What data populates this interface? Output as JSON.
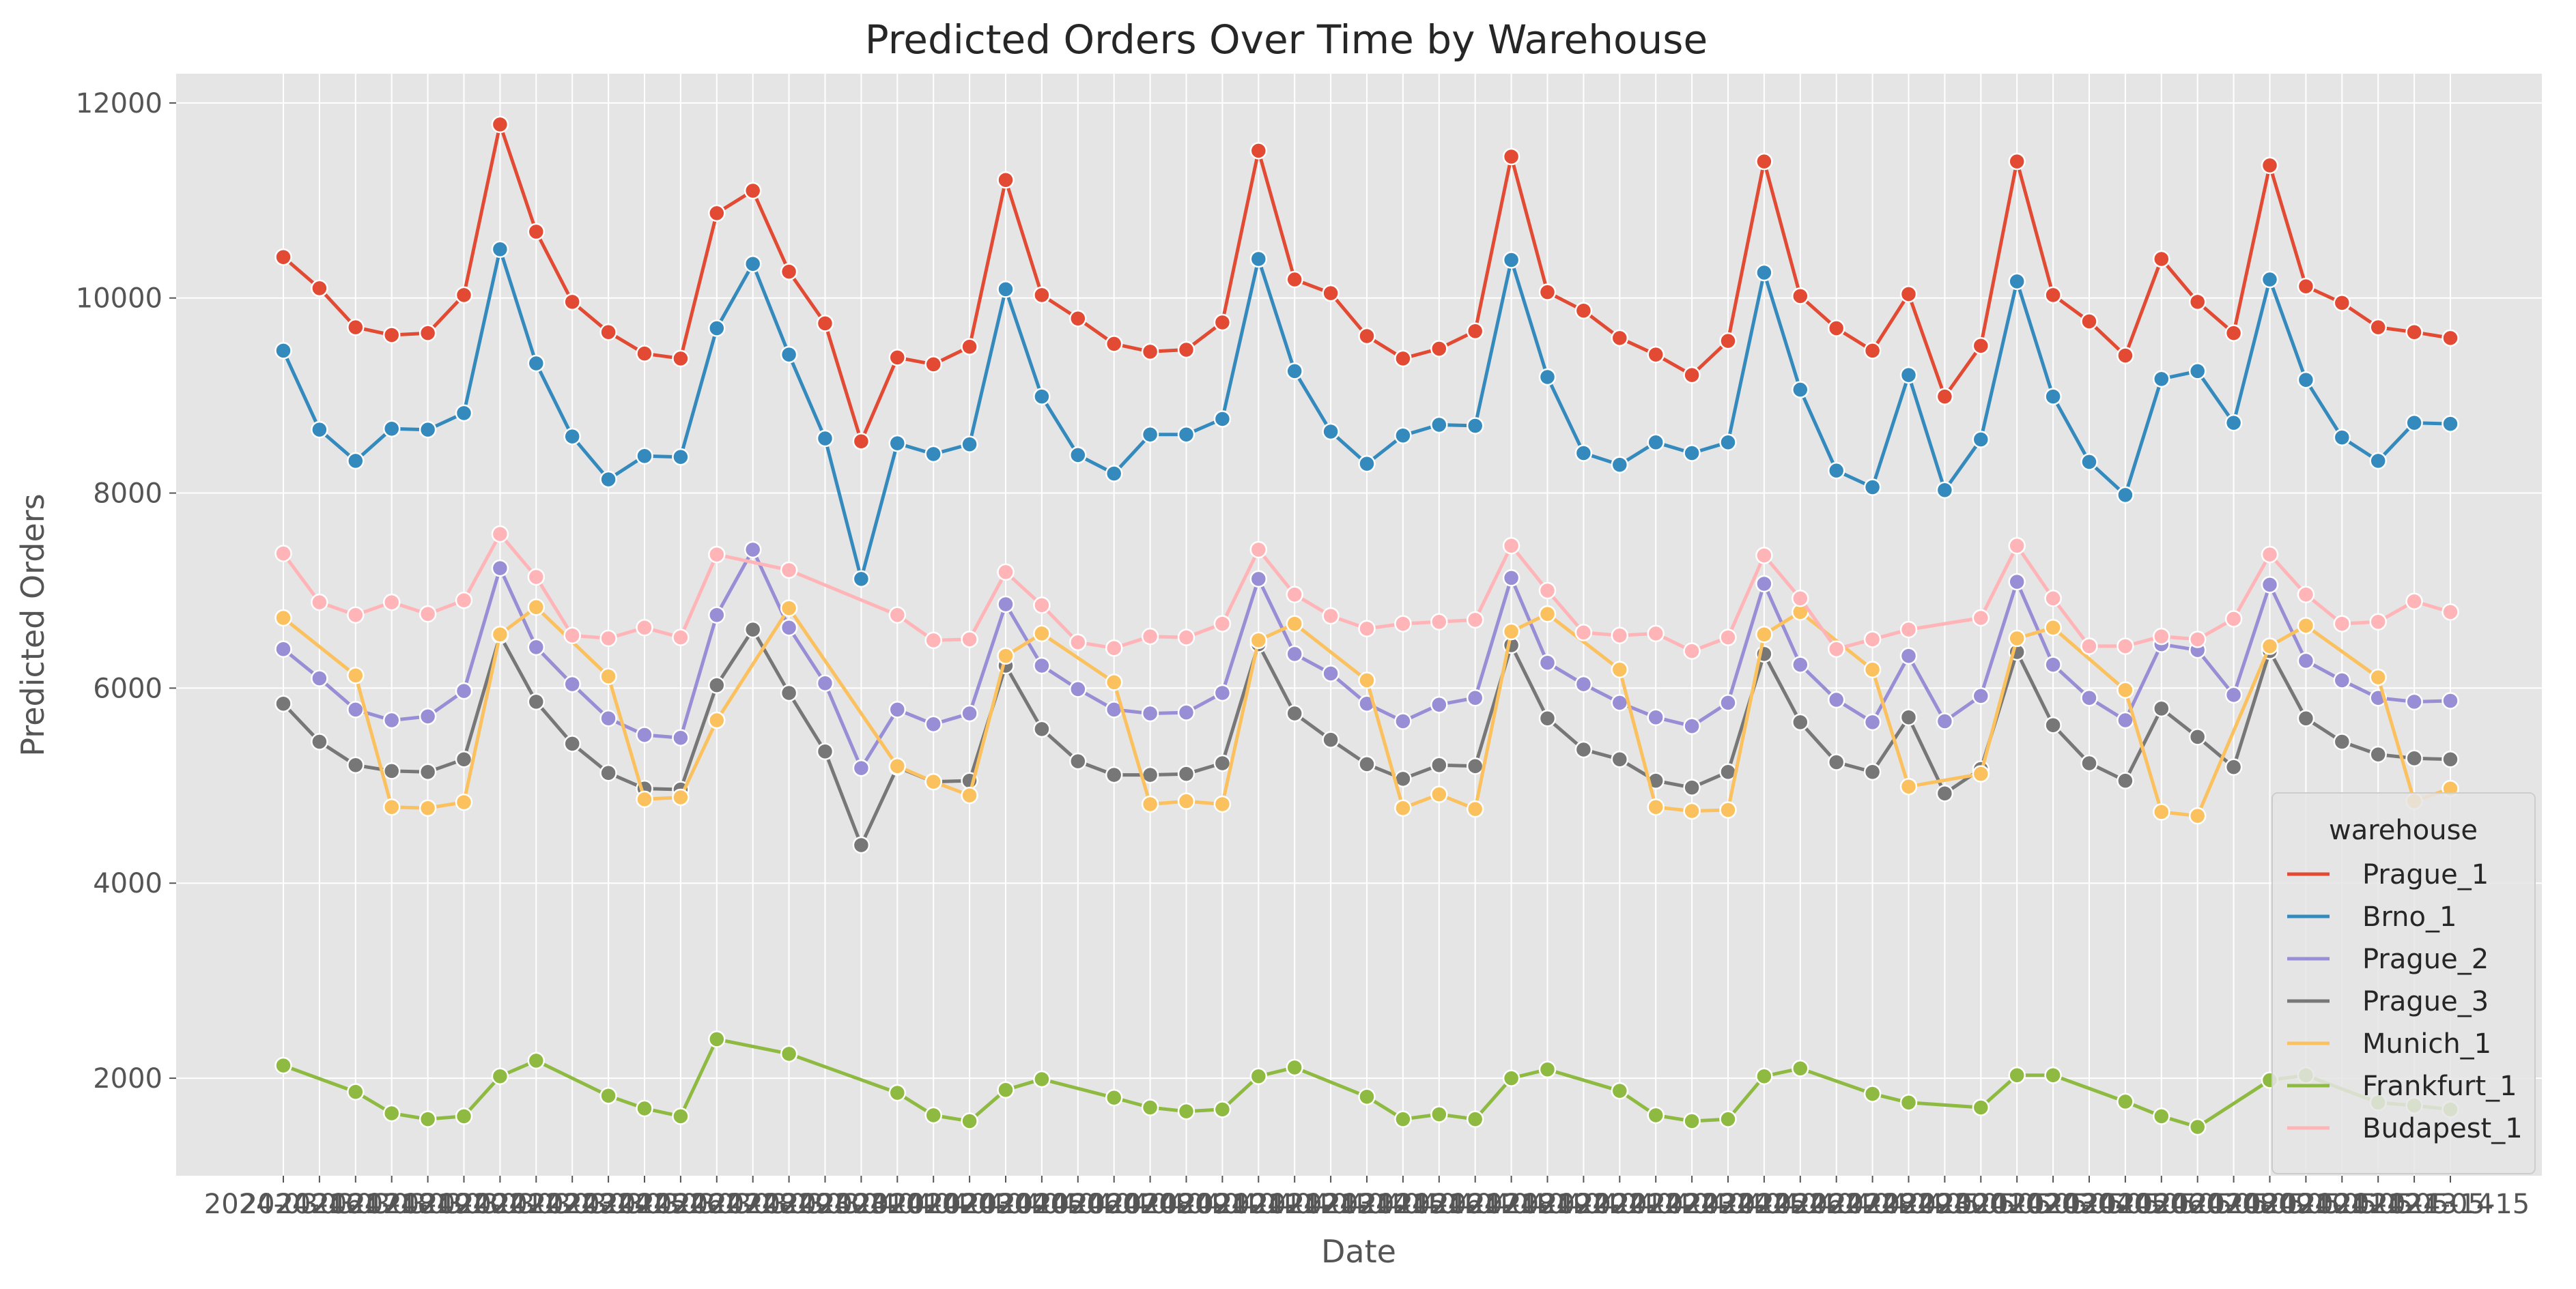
{
  "chart_data": {
    "type": "line",
    "title": "Predicted Orders Over Time by Warehouse",
    "xlabel": "Date",
    "ylabel": "Predicted Orders",
    "ylim": [
      1000,
      12300
    ],
    "yticks": [
      2000,
      4000,
      6000,
      8000,
      10000,
      12000
    ],
    "xtick_labels": [
      "2024-03-16",
      "2024-03-17",
      "2024-03-18",
      "2024-03-19",
      "2024-03-20",
      "2024-03-21",
      "2024-03-22",
      "2024-03-23",
      "2024-03-24",
      "2024-03-25",
      "2024-03-26",
      "2024-03-27",
      "2024-03-28",
      "2024-03-29",
      "2024-03-30",
      "2024-03-31",
      "2024-04-01",
      "2024-04-02",
      "2024-04-03",
      "2024-04-04",
      "2024-04-05",
      "2024-04-06",
      "2024-04-07",
      "2024-04-08",
      "2024-04-09",
      "2024-04-10",
      "2024-04-11",
      "2024-04-12",
      "2024-04-13",
      "2024-04-14",
      "2024-04-15",
      "2024-04-16",
      "2024-04-17",
      "2024-04-18",
      "2024-04-19",
      "2024-04-20",
      "2024-04-21",
      "2024-04-22",
      "2024-04-23",
      "2024-04-24",
      "2024-04-25",
      "2024-04-26",
      "2024-04-27",
      "2024-04-28",
      "2024-04-29",
      "2024-04-30",
      "2024-05-01",
      "2024-05-02",
      "2024-05-03",
      "2024-05-04",
      "2024-05-05",
      "2024-05-06",
      "2024-05-07",
      "2024-05-08",
      "2024-05-09",
      "2024-05-10",
      "2024-05-11",
      "2024-05-12",
      "2024-05-13",
      "2024-05-14",
      "2024-05-15"
    ],
    "grid": true,
    "legend": {
      "title": "warehouse",
      "placement": "lower-right"
    },
    "series": [
      {
        "name": "Prague_1",
        "color": "#E24A33",
        "x": [
          0,
          1,
          2,
          3,
          4,
          5,
          6,
          7,
          8,
          9,
          10,
          11,
          12,
          13,
          14,
          15,
          16,
          17,
          18,
          19,
          20,
          21,
          22,
          23,
          24,
          25,
          26,
          27,
          28,
          29,
          30,
          31,
          32,
          33,
          34,
          35,
          36,
          37,
          38,
          39,
          40,
          41,
          42,
          43,
          44,
          45,
          46,
          47,
          48,
          49,
          50,
          51,
          52,
          53,
          54,
          55,
          56,
          57,
          58,
          59,
          60
        ],
        "values": [
          10420,
          10100,
          9700,
          9620,
          9640,
          10030,
          11780,
          10680,
          9960,
          9650,
          9430,
          9380,
          10870,
          11100,
          10270,
          9740,
          8530,
          9390,
          9320,
          9500,
          11210,
          10030,
          9790,
          9530,
          9450,
          9470,
          9750,
          11510,
          10190,
          10050,
          9610,
          9380,
          9480,
          9660,
          11450,
          10060,
          9870,
          9590,
          9420,
          9210,
          9560,
          11400,
          10020,
          9690,
          9460,
          10040,
          8990,
          9510,
          11400,
          10030,
          9760,
          9410,
          10400,
          9960,
          9640,
          11360,
          10120,
          9950,
          9700,
          9650,
          9590
        ]
      },
      {
        "name": "Brno_1",
        "color": "#348ABD",
        "x": [
          0,
          1,
          2,
          3,
          4,
          5,
          6,
          7,
          8,
          9,
          10,
          11,
          12,
          13,
          14,
          15,
          16,
          17,
          18,
          19,
          20,
          21,
          22,
          23,
          24,
          25,
          26,
          27,
          28,
          29,
          30,
          31,
          32,
          33,
          34,
          35,
          36,
          37,
          38,
          39,
          40,
          41,
          42,
          43,
          44,
          45,
          46,
          47,
          48,
          49,
          50,
          51,
          52,
          53,
          54,
          55,
          56,
          57,
          58,
          59,
          60
        ],
        "values": [
          9460,
          8650,
          8330,
          8660,
          8650,
          8820,
          10500,
          9330,
          8580,
          8140,
          8380,
          8370,
          9690,
          10350,
          9420,
          8560,
          7120,
          8510,
          8400,
          8500,
          10090,
          8990,
          8390,
          8200,
          8600,
          8600,
          8760,
          10400,
          9250,
          8630,
          8300,
          8590,
          8700,
          8690,
          10390,
          9190,
          8410,
          8290,
          8520,
          8410,
          8520,
          10260,
          9060,
          8230,
          8060,
          9210,
          8030,
          8550,
          10170,
          8990,
          8320,
          7980,
          9170,
          9250,
          8720,
          10190,
          9160,
          8570,
          8330,
          8720,
          8710
        ]
      },
      {
        "name": "Prague_2",
        "color": "#988ED5",
        "x": [
          0,
          1,
          2,
          3,
          4,
          5,
          6,
          7,
          8,
          9,
          10,
          11,
          12,
          13,
          14,
          15,
          16,
          17,
          18,
          19,
          20,
          21,
          22,
          23,
          24,
          25,
          26,
          27,
          28,
          29,
          30,
          31,
          32,
          33,
          34,
          35,
          36,
          37,
          38,
          39,
          40,
          41,
          42,
          43,
          44,
          45,
          46,
          47,
          48,
          49,
          50,
          51,
          52,
          53,
          54,
          55,
          56,
          57,
          58,
          59,
          60
        ],
        "values": [
          6400,
          6100,
          5780,
          5670,
          5710,
          5970,
          7230,
          6420,
          6040,
          5690,
          5520,
          5490,
          6750,
          7420,
          6620,
          6050,
          5180,
          5780,
          5630,
          5740,
          6860,
          6230,
          5990,
          5780,
          5740,
          5750,
          5950,
          7120,
          6350,
          6150,
          5840,
          5660,
          5830,
          5900,
          7130,
          6260,
          6040,
          5850,
          5700,
          5610,
          5850,
          7070,
          6240,
          5880,
          5650,
          6330,
          5660,
          5920,
          7090,
          6240,
          5900,
          5670,
          6450,
          6390,
          5930,
          7060,
          6280,
          6080,
          5900,
          5860,
          5870
        ]
      },
      {
        "name": "Prague_3",
        "color": "#777777",
        "x": [
          0,
          1,
          2,
          3,
          4,
          5,
          6,
          7,
          8,
          9,
          10,
          11,
          12,
          13,
          14,
          15,
          16,
          17,
          18,
          19,
          20,
          21,
          22,
          23,
          24,
          25,
          26,
          27,
          28,
          29,
          30,
          31,
          32,
          33,
          34,
          35,
          36,
          37,
          38,
          39,
          40,
          41,
          42,
          43,
          44,
          45,
          46,
          47,
          48,
          49,
          50,
          51,
          52,
          53,
          54,
          55,
          56,
          57,
          58,
          59,
          60
        ],
        "values": [
          5840,
          5450,
          5210,
          5150,
          5140,
          5270,
          6540,
          5860,
          5430,
          5130,
          4970,
          4960,
          6030,
          6600,
          5950,
          5350,
          4390,
          5190,
          5040,
          5050,
          6230,
          5580,
          5250,
          5110,
          5110,
          5120,
          5230,
          6450,
          5740,
          5470,
          5220,
          5070,
          5210,
          5200,
          6440,
          5690,
          5370,
          5270,
          5050,
          4980,
          5140,
          6350,
          5650,
          5240,
          5140,
          5700,
          4920,
          5170,
          6370,
          5620,
          5230,
          5050,
          5790,
          5500,
          5190,
          6380,
          5690,
          5450,
          5320,
          5280,
          5270
        ]
      },
      {
        "name": "Munich_1",
        "color": "#FBC15E",
        "x": [
          0,
          2,
          3,
          4,
          5,
          6,
          7,
          9,
          10,
          11,
          12,
          14,
          17,
          18,
          19,
          20,
          21,
          23,
          24,
          25,
          26,
          27,
          28,
          30,
          31,
          32,
          33,
          34,
          35,
          37,
          38,
          39,
          40,
          41,
          42,
          44,
          45,
          47,
          48,
          49,
          51,
          52,
          53,
          55,
          56,
          58,
          59,
          60
        ],
        "values": [
          6720,
          6130,
          4780,
          4770,
          4830,
          6550,
          6830,
          6120,
          4860,
          4880,
          5670,
          6820,
          5200,
          5040,
          4900,
          6330,
          6560,
          6060,
          4810,
          4840,
          4810,
          6490,
          6660,
          6080,
          4770,
          4910,
          4760,
          6580,
          6760,
          6190,
          4780,
          4740,
          4750,
          6550,
          6780,
          6190,
          4990,
          5120,
          6510,
          6620,
          5980,
          4730,
          4690,
          6430,
          6640,
          6110,
          4840,
          4970
        ]
      },
      {
        "name": "Frankfurt_1",
        "color": "#8EBA42",
        "x": [
          0,
          2,
          3,
          4,
          5,
          6,
          7,
          9,
          10,
          11,
          12,
          14,
          17,
          18,
          19,
          20,
          21,
          23,
          24,
          25,
          26,
          27,
          28,
          30,
          31,
          32,
          33,
          34,
          35,
          37,
          38,
          39,
          40,
          41,
          42,
          44,
          45,
          47,
          48,
          49,
          51,
          52,
          53,
          55,
          56,
          58,
          59,
          60
        ],
        "values": [
          2130,
          1860,
          1640,
          1580,
          1610,
          2020,
          2180,
          1820,
          1690,
          1610,
          2400,
          2250,
          1850,
          1620,
          1560,
          1880,
          1990,
          1800,
          1700,
          1660,
          1680,
          2020,
          2110,
          1810,
          1580,
          1630,
          1580,
          2000,
          2090,
          1870,
          1620,
          1560,
          1580,
          2020,
          2100,
          1840,
          1750,
          1700,
          2030,
          2030,
          1760,
          1610,
          1500,
          1980,
          2030,
          1750,
          1720,
          1680
        ]
      },
      {
        "name": "Budapest_1",
        "color": "#FFB5B8",
        "x": [
          0,
          1,
          2,
          3,
          4,
          5,
          6,
          7,
          8,
          9,
          10,
          11,
          12,
          14,
          17,
          18,
          19,
          20,
          21,
          22,
          23,
          24,
          25,
          26,
          27,
          28,
          29,
          30,
          31,
          32,
          33,
          34,
          35,
          36,
          37,
          38,
          39,
          40,
          41,
          42,
          43,
          44,
          45,
          47,
          48,
          49,
          50,
          51,
          52,
          53,
          54,
          55,
          56,
          57,
          58,
          59,
          60
        ],
        "values": [
          7380,
          6880,
          6750,
          6880,
          6760,
          6900,
          7580,
          7140,
          6540,
          6510,
          6620,
          6520,
          7370,
          7210,
          6750,
          6490,
          6500,
          7190,
          6850,
          6470,
          6410,
          6530,
          6520,
          6660,
          7420,
          6960,
          6740,
          6610,
          6660,
          6680,
          6700,
          7460,
          7000,
          6570,
          6540,
          6560,
          6380,
          6520,
          7360,
          6920,
          6400,
          6500,
          6600,
          6720,
          7460,
          6920,
          6430,
          6430,
          6530,
          6500,
          6710,
          7370,
          6960,
          6660,
          6680,
          6890,
          6780
        ]
      }
    ]
  }
}
